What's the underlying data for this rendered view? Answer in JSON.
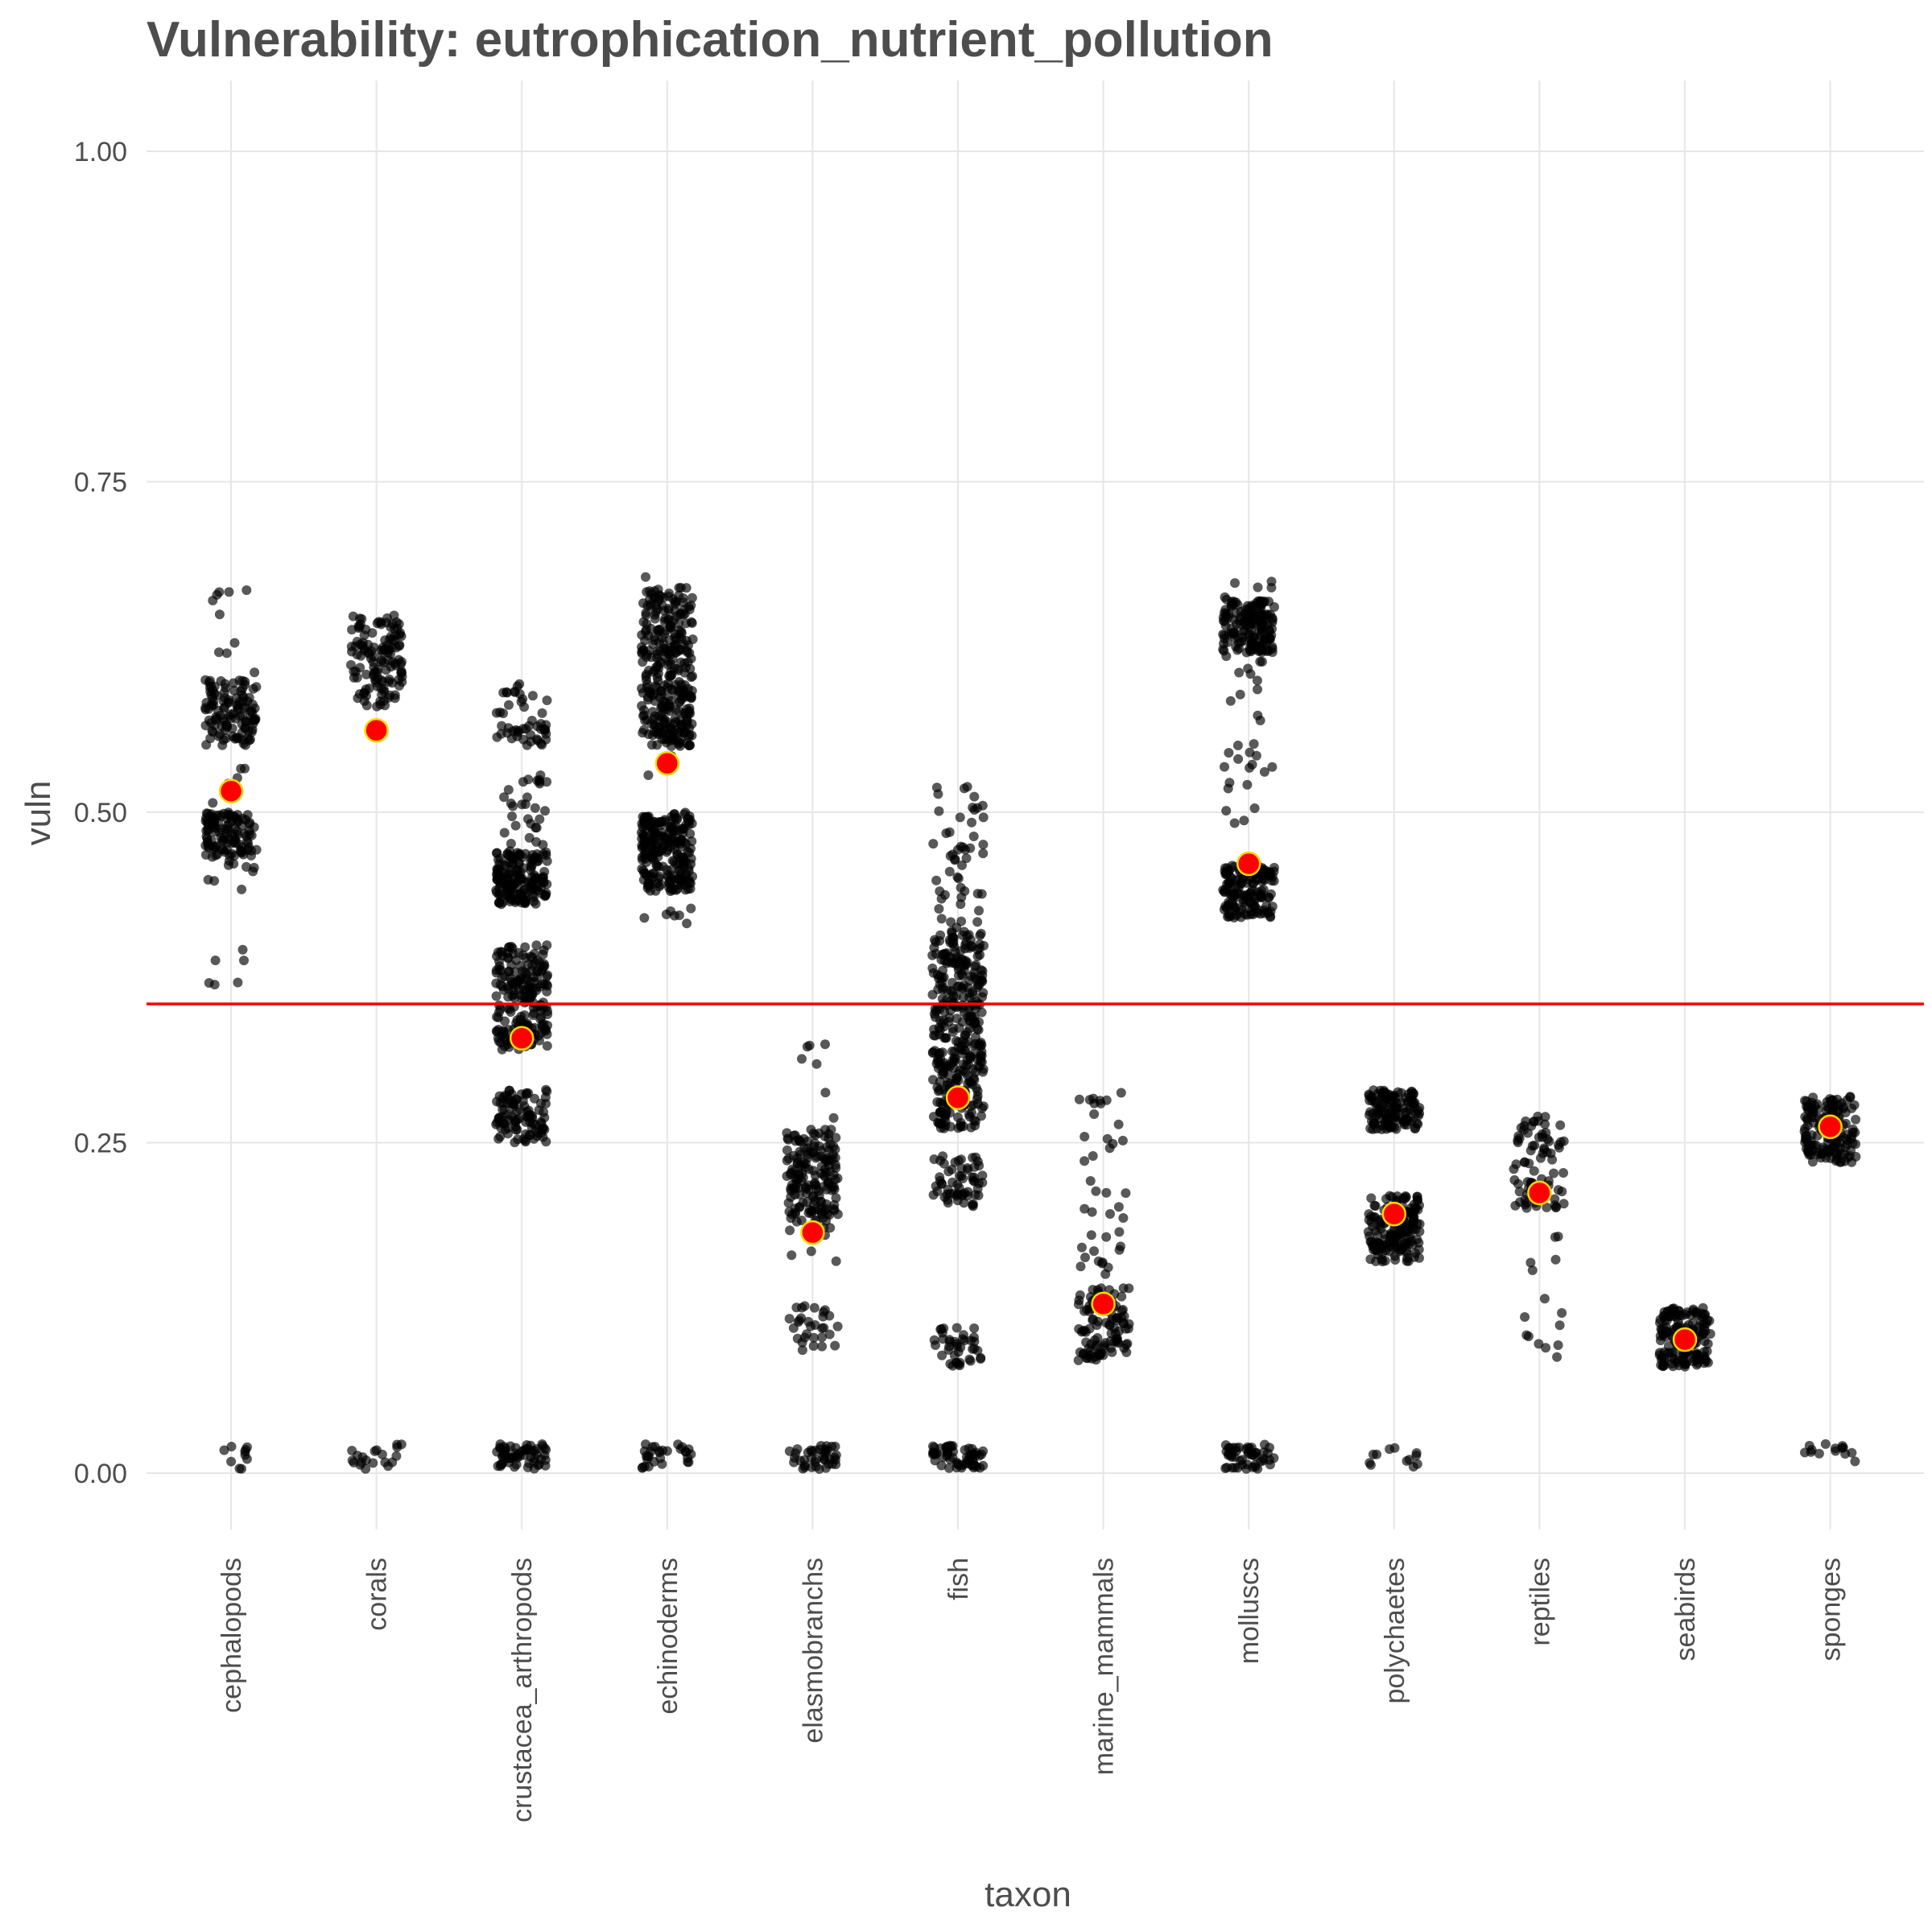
{
  "chart_data": {
    "type": "scatter",
    "title": "Vulnerability: eutrophication_nutrient_pollution",
    "xlabel": "taxon",
    "ylabel": "vuln",
    "ylim": [
      -0.05,
      1.05
    ],
    "yticks": [
      0,
      0.25,
      0.5,
      0.75,
      1
    ],
    "ytick_labels": [
      "0.00",
      "0.25",
      "0.50",
      "0.75",
      "1.00"
    ],
    "grid": true,
    "categories": [
      "cephalopods",
      "corals",
      "crustacea_arthropods",
      "echinoderms",
      "elasmobranchs",
      "fish",
      "marine_mammals",
      "molluscs",
      "polychaetes",
      "reptiles",
      "seabirds",
      "sponges"
    ],
    "reference_line": {
      "y": 0.355,
      "color": "#ff0000"
    },
    "means": {
      "name": "mean",
      "color": "#ff0000",
      "edge_color": "#ffd700",
      "values": [
        0.516,
        0.562,
        0.329,
        0.537,
        0.182,
        0.284,
        0.128,
        0.461,
        0.196,
        0.212,
        0.101,
        0.262
      ]
    },
    "points": {
      "color": "#000000",
      "opacity": 0.65,
      "clusters": [
        [
          [
            0.55,
            0.6,
            110
          ],
          [
            0.46,
            0.5,
            110
          ],
          [
            0.36,
            0.67,
            40
          ],
          [
            0.003,
            0.022,
            10
          ]
        ],
        [
          [
            0.58,
            0.65,
            130
          ],
          [
            0.003,
            0.022,
            20
          ]
        ],
        [
          [
            0.43,
            0.47,
            160
          ],
          [
            0.32,
            0.4,
            200
          ],
          [
            0.25,
            0.29,
            100
          ],
          [
            0.55,
            0.6,
            50
          ],
          [
            0.47,
            0.53,
            30
          ],
          [
            0.003,
            0.022,
            60
          ]
        ],
        [
          [
            0.55,
            0.67,
            300
          ],
          [
            0.44,
            0.5,
            220
          ],
          [
            0.41,
            0.68,
            30
          ],
          [
            0.003,
            0.022,
            30
          ]
        ],
        [
          [
            0.19,
            0.26,
            150
          ],
          [
            0.09,
            0.13,
            30
          ],
          [
            0.16,
            0.33,
            30
          ],
          [
            0.003,
            0.022,
            40
          ]
        ],
        [
          [
            0.26,
            0.41,
            350
          ],
          [
            0.41,
            0.52,
            50
          ],
          [
            0.2,
            0.24,
            60
          ],
          [
            0.08,
            0.11,
            40
          ],
          [
            0.003,
            0.022,
            60
          ]
        ],
        [
          [
            0.085,
            0.14,
            100
          ],
          [
            0.15,
            0.29,
            40
          ]
        ],
        [
          [
            0.62,
            0.66,
            150
          ],
          [
            0.42,
            0.46,
            150
          ],
          [
            0.47,
            0.68,
            40
          ],
          [
            0.003,
            0.022,
            50
          ]
        ],
        [
          [
            0.26,
            0.29,
            130
          ],
          [
            0.16,
            0.21,
            160
          ],
          [
            0.003,
            0.022,
            12
          ]
        ],
        [
          [
            0.2,
            0.27,
            80
          ],
          [
            0.08,
            0.19,
            15
          ]
        ],
        [
          [
            0.08,
            0.125,
            160
          ]
        ],
        [
          [
            0.235,
            0.285,
            150
          ],
          [
            0.003,
            0.022,
            14
          ]
        ]
      ]
    }
  }
}
